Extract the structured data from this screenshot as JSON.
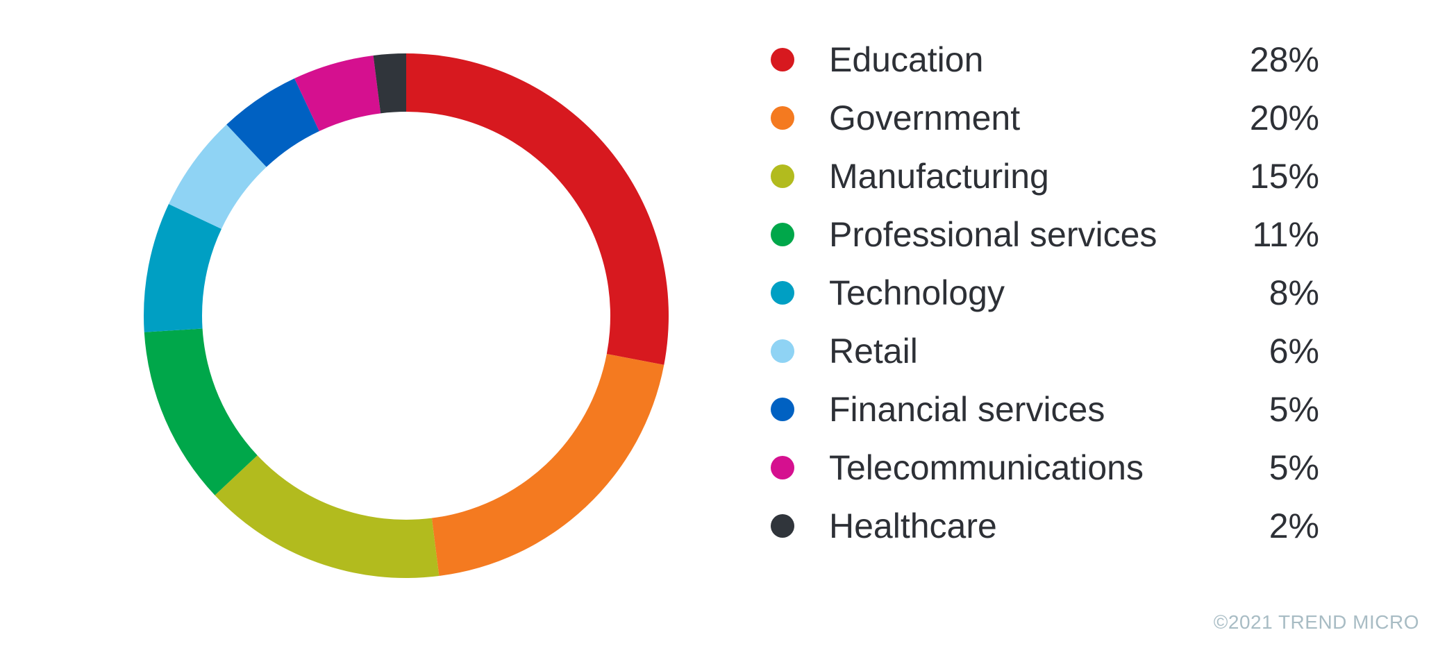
{
  "chart_data": {
    "type": "pie",
    "style": "donut",
    "categories": [
      "Education",
      "Government",
      "Manufacturing",
      "Professional services",
      "Technology",
      "Retail",
      "Financial services",
      "Telecommunications",
      "Healthcare"
    ],
    "values": [
      28,
      20,
      15,
      11,
      8,
      6,
      5,
      5,
      2
    ],
    "value_labels": [
      "28%",
      "20%",
      "15%",
      "11%",
      "8%",
      "6%",
      "5%",
      "5%",
      "2%"
    ],
    "colors": [
      "#d7191f",
      "#f47a20",
      "#b2bb1e",
      "#00a74a",
      "#009fc3",
      "#8fd3f4",
      "#0061c2",
      "#d5108f",
      "#30353b"
    ],
    "legend_position": "right",
    "title": ""
  },
  "footer": {
    "copyright": "©2021 TREND MICRO"
  }
}
